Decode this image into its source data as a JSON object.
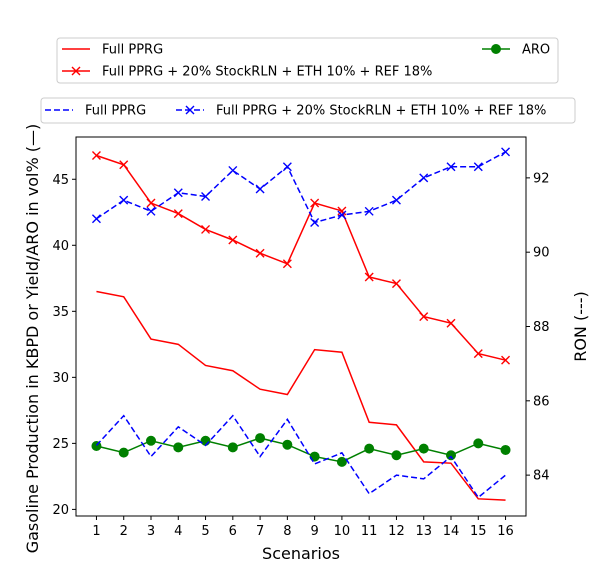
{
  "chart_data": {
    "type": "line",
    "x": [
      1,
      2,
      3,
      4,
      5,
      6,
      7,
      8,
      9,
      10,
      11,
      12,
      13,
      14,
      15,
      16
    ],
    "xlabel": "Scenarios",
    "ylabel_left": "Gasoline Production in KBPD or Yield/ARO in vol% (—)",
    "ylabel_right": "RON (---)",
    "ylim_left": [
      19.5,
      48.2
    ],
    "ylim_right": [
      82.9,
      93.1
    ],
    "yticks_left": [
      20,
      25,
      30,
      35,
      40,
      45
    ],
    "yticks_right": [
      84,
      86,
      88,
      90,
      92
    ],
    "grid": false,
    "series": [
      {
        "name": "Full PPRG",
        "axis": "left",
        "color": "#ff0000",
        "style": "solid",
        "marker": "none",
        "values": [
          36.5,
          36.1,
          32.9,
          32.5,
          30.9,
          30.5,
          29.1,
          28.7,
          32.1,
          31.9,
          26.6,
          26.4,
          23.6,
          23.5,
          20.8,
          20.7
        ]
      },
      {
        "name": "Full PPRG + 20% StockRLN + ETH 10% + REF 18%",
        "axis": "left",
        "color": "#ff0000",
        "style": "solid",
        "marker": "x",
        "values": [
          46.8,
          46.1,
          43.2,
          42.4,
          41.2,
          40.4,
          39.4,
          38.6,
          43.2,
          42.6,
          37.6,
          37.1,
          34.6,
          34.1,
          31.8,
          31.3
        ]
      },
      {
        "name": "ARO",
        "axis": "left",
        "color": "#008000",
        "style": "solid",
        "marker": "o",
        "values": [
          24.8,
          24.3,
          25.2,
          24.7,
          25.2,
          24.7,
          25.4,
          24.9,
          24.0,
          23.6,
          24.6,
          24.1,
          24.6,
          24.1,
          25.0,
          24.5
        ]
      },
      {
        "name": "Full PPRG",
        "axis": "right",
        "color": "#0000ff",
        "style": "dashed",
        "marker": "none",
        "values": [
          84.8,
          85.6,
          84.5,
          85.3,
          84.8,
          85.6,
          84.5,
          85.5,
          84.3,
          84.6,
          83.5,
          84.0,
          83.9,
          84.5,
          83.4,
          84.0
        ]
      },
      {
        "name": "Full PPRG + 20% StockRLN + ETH 10% + REF 18%",
        "axis": "right",
        "color": "#0000ff",
        "style": "dashed",
        "marker": "x",
        "values": [
          90.9,
          91.4,
          91.1,
          91.6,
          91.5,
          92.2,
          91.7,
          92.3,
          90.8,
          91.0,
          91.1,
          91.4,
          92.0,
          92.3,
          92.3,
          92.7
        ]
      }
    ],
    "legend_top": [
      {
        "label": "Full PPRG",
        "series": 0
      },
      {
        "label": "Full PPRG + 20% StockRLN + ETH 10% + REF 18%",
        "series": 1
      },
      {
        "label": "ARO",
        "series": 2
      }
    ],
    "legend_bottom": [
      {
        "label": "Full PPRG",
        "series": 3
      },
      {
        "label": "Full PPRG + 20% StockRLN + ETH 10% + REF 18%",
        "series": 4
      }
    ]
  }
}
